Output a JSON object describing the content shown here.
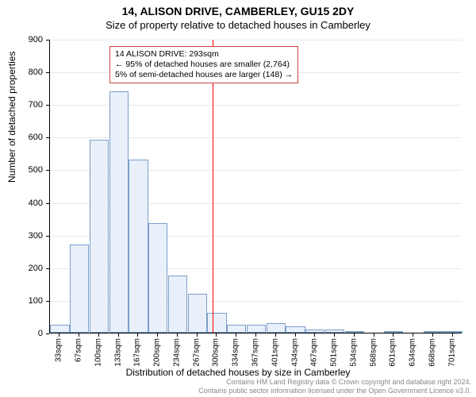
{
  "title_line1": "14, ALISON DRIVE, CAMBERLEY, GU15 2DY",
  "title_line2": "Size of property relative to detached houses in Camberley",
  "ylabel": "Number of detached properties",
  "xlabel": "Distribution of detached houses by size in Camberley",
  "chart": {
    "type": "histogram",
    "ylim": [
      0,
      900
    ],
    "ytick_step": 100,
    "x_categories": [
      "33sqm",
      "67sqm",
      "100sqm",
      "133sqm",
      "167sqm",
      "200sqm",
      "234sqm",
      "267sqm",
      "300sqm",
      "334sqm",
      "367sqm",
      "401sqm",
      "434sqm",
      "467sqm",
      "501sqm",
      "534sqm",
      "568sqm",
      "601sqm",
      "634sqm",
      "668sqm",
      "701sqm"
    ],
    "x_values_sqm": [
      33,
      67,
      100,
      133,
      167,
      200,
      234,
      267,
      300,
      334,
      367,
      401,
      434,
      467,
      501,
      534,
      568,
      601,
      634,
      668,
      701
    ],
    "bar_heights": [
      25,
      270,
      590,
      740,
      530,
      335,
      175,
      120,
      60,
      25,
      25,
      30,
      20,
      10,
      10,
      5,
      0,
      3,
      0,
      2,
      1
    ],
    "bar_fill_color": "#e9f0fa",
    "bar_border_color": "#7a9fc9",
    "grid_color": "#e8e8e8",
    "background_color": "#ffffff",
    "axis_color": "#000000",
    "marker_value_sqm": 293,
    "marker_color": "#ff0000",
    "xtick_rotation_deg": -90,
    "tick_fontsize": 11,
    "label_fontsize": 12,
    "title_fontsize": 14
  },
  "annotation": {
    "line1": "14 ALISON DRIVE: 293sqm",
    "line2": "← 95% of detached houses are smaller (2,764)",
    "line3": "5% of semi-detached houses are larger (148) →",
    "border_color": "#cc4444",
    "background_color": "#ffffff",
    "fontsize": 10.5
  },
  "footer": {
    "line1": "Contains HM Land Registry data © Crown copyright and database right 2024.",
    "line2": "Contains public sector information licensed under the Open Government Licence v3.0.",
    "color": "#888888",
    "fontsize": 9
  }
}
